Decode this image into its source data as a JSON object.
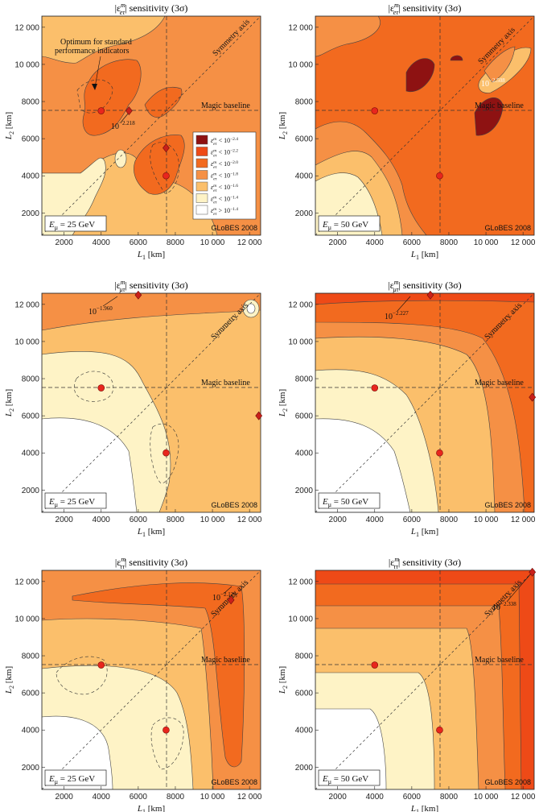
{
  "chart_data": [
    {
      "type": "heatmap",
      "title": "|ε^m_eτ| sensitivity (3σ)",
      "xlabel": "L1 [km]",
      "ylabel": "L2 [km]",
      "xlim": [
        800,
        12600
      ],
      "ylim": [
        800,
        12600
      ],
      "xticks": [
        "2000",
        "4000",
        "6000",
        "8000",
        "10000",
        "12000"
      ],
      "yticks": [
        "2000",
        "4000",
        "6000",
        "8000",
        "10000",
        "12000"
      ],
      "energy": "Eμ = 25 GeV",
      "credit": "GLoBES 2008",
      "optimum_label": "10^-2.218",
      "optimum_point": [
        5500,
        7500
      ],
      "points": [
        [
          4000,
          7500
        ],
        [
          7500,
          4000
        ]
      ],
      "optimum_note": "Optimum for standard performance indicators",
      "magic_baseline": 7500,
      "annotations": [
        "Symmetry axis",
        "Magic baseline"
      ],
      "legend": [
        "ε^m_eτ < 10^-2.4",
        "ε^m_eτ < 10^-2.2",
        "ε^m_eτ < 10^-2.0",
        "ε^m_eτ < 10^-1.8",
        "ε^m_eτ < 10^-1.6",
        "ε^m_eτ < 10^-1.4",
        "ε^m_eτ > 10^-1.4"
      ],
      "legend_colors": [
        "#8e1212",
        "#ee4a17",
        "#f26a1f",
        "#f59045",
        "#fbbf6b",
        "#fef3c6",
        "#ffffff"
      ]
    },
    {
      "type": "heatmap",
      "title": "|ε^m_eτ| sensitivity (3σ)",
      "xlabel": "L1 [km]",
      "ylabel": "L2 [km]",
      "xlim": [
        800,
        12600
      ],
      "ylim": [
        800,
        12600
      ],
      "energy": "Eμ = 50 GeV",
      "credit": "GLoBES 2008",
      "optimum_label": "10^-2.508",
      "points": [
        [
          4000,
          7500
        ],
        [
          7500,
          4000
        ]
      ],
      "annotations": [
        "Symmetry axis",
        "Magic baseline"
      ]
    },
    {
      "type": "heatmap",
      "title": "|ε^m_μτ| sensitivity (3σ)",
      "xlabel": "L1 [km]",
      "ylabel": "L2 [km]",
      "energy": "Eμ = 25 GeV",
      "credit": "GLoBES 2008",
      "optimum_label": "10^-1.960",
      "optimum_point": [
        6000,
        12500
      ],
      "points": [
        [
          4000,
          7500
        ],
        [
          7500,
          4000
        ]
      ],
      "annotations": [
        "Symmetry axis",
        "Magic baseline"
      ]
    },
    {
      "type": "heatmap",
      "title": "|ε^m_μτ| sensitivity (3σ)",
      "xlabel": "L1 [km]",
      "ylabel": "L2 [km]",
      "energy": "Eμ = 50 GeV",
      "credit": "GLoBES 2008",
      "optimum_label": "10^-2.227",
      "optimum_point": [
        7000,
        12500
      ],
      "points": [
        [
          4000,
          7500
        ],
        [
          7500,
          4000
        ]
      ],
      "annotations": [
        "Symmetry axis",
        "Magic baseline"
      ]
    },
    {
      "type": "heatmap",
      "title": "|ε^m_ττ| sensitivity (3σ)",
      "xlabel": "L1 [km]",
      "ylabel": "L2 [km]",
      "energy": "Eμ = 25 GeV",
      "credit": "GLoBES 2008",
      "optimum_label": "10^-2.120",
      "optimum_point": [
        11000,
        11000
      ],
      "points": [
        [
          4000,
          7500
        ],
        [
          7500,
          4000
        ]
      ],
      "annotations": [
        "Symmetry axis",
        "Magic baseline"
      ]
    },
    {
      "type": "heatmap",
      "title": "|ε^m_ττ| sensitivity (3σ)",
      "xlabel": "L1 [km]",
      "ylabel": "L2 [km]",
      "energy": "Eμ = 50 GeV",
      "credit": "GLoBES 2008",
      "optimum_label": "10^-2.338",
      "optimum_point": [
        12500,
        12500
      ],
      "points": [
        [
          4000,
          7500
        ],
        [
          7500,
          4000
        ]
      ],
      "annotations": [
        "Symmetry axis",
        "Magic baseline"
      ]
    }
  ],
  "ui": {
    "titles": [
      "|ε",
      "ε",
      "ε"
    ],
    "t1": {
      "pre": "|ε",
      "sup": "m",
      "sub": "eτ",
      "post": "| sensitivity (3σ)"
    },
    "t2": {
      "pre": "|ε",
      "sup": "m",
      "sub": "eτ",
      "post": "| sensitivity (3σ)"
    },
    "t3": {
      "pre": "|ε",
      "sup": "m",
      "sub": "μτ",
      "post": "| sensitivity (3σ)"
    },
    "t4": {
      "pre": "|ε",
      "sup": "m",
      "sub": "μτ",
      "post": "| sensitivity (3σ)"
    },
    "t5": {
      "pre": "|ε",
      "sup": "m",
      "sub": "ττ",
      "post": "| sensitivity (3σ)"
    },
    "t6": {
      "pre": "|ε",
      "sup": "m",
      "sub": "ττ",
      "post": "| sensitivity (3σ)"
    },
    "xlab_main": "L",
    "xlab_sub": "1",
    "xlab_unit": " [km]",
    "ylab_main": "L",
    "ylab_sub": "2",
    "ylab_unit": " [km]",
    "symmetry": "Symmetry axis",
    "magic": "Magic baseline",
    "globes": "GLoBES 2008",
    "e25": "E",
    "e_sub": "μ",
    "e25_val": " = 25 GeV",
    "e50_val": " = 50 GeV",
    "opt_note_1": "Optimum for standard",
    "opt_note_2": "performance indicators",
    "lab1": "10",
    "lab1_exp": "−2.218",
    "lab2": "10",
    "lab2_exp": "−2.508",
    "lab3": "10",
    "lab3_exp": "−1.960",
    "lab4": "10",
    "lab4_exp": "−2.227",
    "lab5": "10",
    "lab5_exp": "−2.120",
    "lab6": "10",
    "lab6_exp": "−2.338",
    "legend_rows": [
      {
        "pre": "ε",
        "sup": "m",
        "sub": "eτ",
        "rel": " < 10",
        "exp": "−2.4"
      },
      {
        "pre": "ε",
        "sup": "m",
        "sub": "eτ",
        "rel": " < 10",
        "exp": "−2.2"
      },
      {
        "pre": "ε",
        "sup": "m",
        "sub": "eτ",
        "rel": " < 10",
        "exp": "−2.0"
      },
      {
        "pre": "ε",
        "sup": "m",
        "sub": "eτ",
        "rel": " < 10",
        "exp": "−1.8"
      },
      {
        "pre": "ε",
        "sup": "m",
        "sub": "eτ",
        "rel": " < 10",
        "exp": "−1.6"
      },
      {
        "pre": "ε",
        "sup": "m",
        "sub": "eτ",
        "rel": " < 10",
        "exp": "−1.4"
      },
      {
        "pre": "ε",
        "sup": "m",
        "sub": "eτ",
        "rel": " > 10",
        "exp": "−1.4"
      }
    ],
    "ticks": [
      "2000",
      "4000",
      "6000",
      "8000",
      "10000",
      "12000"
    ],
    "ticks_fmt": [
      "2000",
      "4000",
      "6000",
      "8000",
      "10 000",
      "12 000"
    ]
  }
}
